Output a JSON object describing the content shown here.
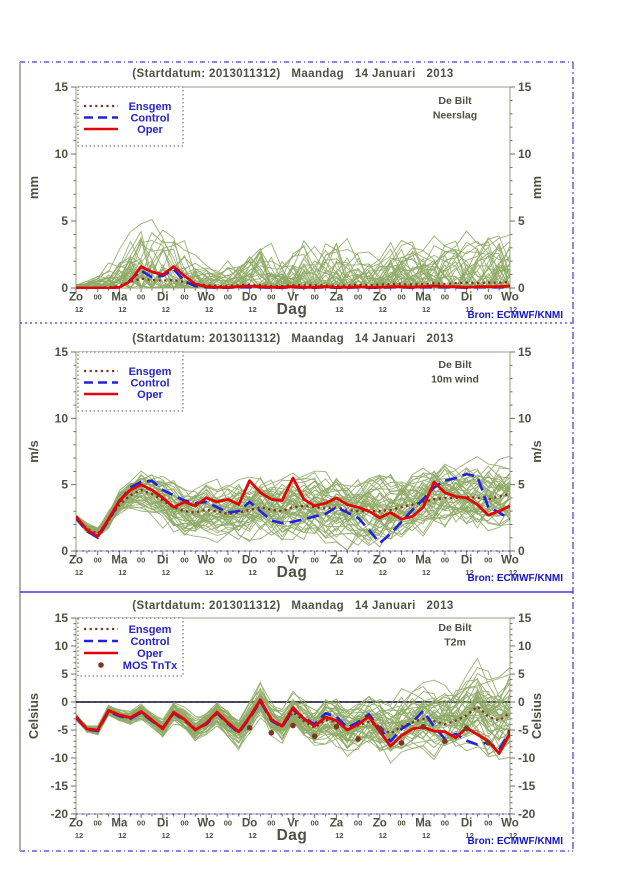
{
  "figure": {
    "source_label": "Bron: ECMWF/KNMI",
    "station": "De Bilt"
  },
  "colors": {
    "ensemble_green": "#8fab67",
    "oper_red": "#e30505",
    "control_blue": "#2222dd",
    "ensgem_brown": "#7e3522",
    "mos_brown": "#7e3522",
    "text_olive": "#4d5243",
    "tick_olive": "#6b7158",
    "box_gray": "#979d83",
    "legend_text_blue": "#2424cc",
    "source_blue": "#1515cc",
    "frame_blue": "#3b3be0",
    "frame_gray": "#adb3a2",
    "zero_dark": "#4b5040"
  },
  "chart_data": [
    {
      "type": "line",
      "title": "(Startdatum: 2013011312)   Maandag   14 Januari   2013",
      "station": "De Bilt",
      "variable": "Neerslag",
      "unit": "mm",
      "xlabel": "Dag",
      "source": "Bron: ECMWF/KNMI",
      "ylim": [
        0,
        15
      ],
      "ytick_major": 5,
      "ytick_minor": 1,
      "ytick_labels": [
        "0",
        "5",
        "10",
        "15"
      ],
      "x_day_labels": [
        "Zo",
        "Ma",
        "Di",
        "Wo",
        "Do",
        "Vr",
        "Za",
        "Zo",
        "Ma",
        "Di",
        "Wo"
      ],
      "x_midnight_label": "00",
      "x_noon_label": "12",
      "hours_per_step": 6,
      "zero_line": false,
      "legend": [
        {
          "key": "ensgem",
          "label": "Ensgem"
        },
        {
          "key": "control",
          "label": "Control"
        },
        {
          "key": "oper",
          "label": "Oper"
        }
      ],
      "series": {
        "ensgem": [
          0,
          0,
          0.02,
          0.05,
          0.15,
          0.45,
          0.7,
          0.6,
          0.55,
          0.6,
          0.45,
          0.3,
          0.2,
          0.15,
          0.15,
          0.2,
          0.25,
          0.2,
          0.15,
          0.15,
          0.2,
          0.25,
          0.2,
          0.2,
          0.15,
          0.2,
          0.25,
          0.2,
          0.25,
          0.3,
          0.3,
          0.25,
          0.3,
          0.35,
          0.3,
          0.35,
          0.4,
          0.35,
          0.4,
          0.4,
          0.45
        ],
        "control": [
          0,
          0,
          0,
          0,
          0.05,
          0.6,
          1.3,
          0.8,
          0.9,
          1.4,
          0.5,
          0.15,
          0.05,
          0.02,
          0.02,
          0.05,
          0.05,
          0.05,
          0.02,
          0.02,
          0.05,
          0.02,
          0.02,
          0.05,
          0.02,
          0.02,
          0.05,
          0.02,
          0.02,
          0.05,
          0.05,
          0.02,
          0.05,
          0.05,
          0.05,
          0.05,
          0.02,
          0.05,
          0.05,
          0.05,
          0.05
        ],
        "oper": [
          0,
          0,
          0,
          0,
          0.05,
          0.5,
          1.6,
          1.2,
          1.0,
          1.6,
          0.9,
          0.3,
          0.1,
          0.05,
          0.05,
          0.1,
          0.15,
          0.1,
          0.05,
          0.05,
          0.1,
          0.05,
          0.05,
          0.1,
          0.05,
          0.05,
          0.1,
          0.05,
          0.05,
          0.1,
          0.1,
          0.05,
          0.1,
          0.15,
          0.1,
          0.1,
          0.05,
          0.1,
          0.1,
          0.1,
          0.15
        ]
      },
      "ensemble": {
        "count": 50,
        "seed": 9,
        "mode": "precip",
        "spread": [
          0.3,
          0.5,
          0.8,
          1.5,
          2.5,
          3.5,
          4.2,
          4.0,
          3.8,
          3.5,
          3.0,
          2.2,
          1.6,
          1.4,
          1.8,
          2.2,
          2.6,
          3.0,
          2.8,
          2.4,
          3.2,
          3.6,
          3.2,
          3.4,
          3.8,
          3.2,
          2.8,
          2.4,
          2.2,
          2.6,
          3.0,
          2.8,
          2.6,
          3.0,
          3.4,
          3.2,
          3.6,
          4.0,
          3.8,
          3.6,
          3.8
        ]
      }
    },
    {
      "type": "line",
      "title": "(Startdatum: 2013011312)   Maandag   14 Januari   2013",
      "station": "De Bilt",
      "variable": "10m wind",
      "unit": "m/s",
      "xlabel": "Dag",
      "source": "Bron: ECMWF/KNMI",
      "ylim": [
        0,
        15
      ],
      "ytick_major": 5,
      "ytick_minor": 1,
      "ytick_labels": [
        "0",
        "5",
        "10",
        "15"
      ],
      "x_day_labels": [
        "Zo",
        "Ma",
        "Di",
        "Wo",
        "Do",
        "Vr",
        "Za",
        "Zo",
        "Ma",
        "Di",
        "Wo"
      ],
      "x_midnight_label": "00",
      "x_noon_label": "12",
      "hours_per_step": 6,
      "zero_line": false,
      "legend": [
        {
          "key": "ensgem",
          "label": "Ensgem"
        },
        {
          "key": "control",
          "label": "Control"
        },
        {
          "key": "oper",
          "label": "Oper"
        }
      ],
      "series": {
        "ensgem": [
          2.5,
          1.7,
          1.3,
          2.3,
          3.5,
          4.2,
          4.6,
          4.3,
          3.8,
          3.3,
          3.0,
          2.9,
          3.1,
          3.0,
          2.8,
          2.9,
          3.1,
          3.3,
          3.1,
          3.0,
          3.3,
          3.4,
          3.3,
          3.2,
          3.3,
          3.1,
          3.0,
          3.0,
          3.0,
          3.1,
          3.3,
          3.5,
          3.7,
          3.9,
          4.0,
          4.0,
          4.1,
          4.0,
          3.9,
          4.1,
          4.3
        ],
        "control": [
          2.5,
          1.5,
          1.0,
          2.3,
          3.7,
          4.8,
          5.2,
          5.3,
          4.6,
          4.2,
          3.8,
          3.6,
          3.7,
          3.3,
          2.9,
          3.0,
          3.7,
          3.0,
          2.3,
          2.1,
          2.2,
          2.4,
          2.6,
          2.8,
          3.3,
          2.9,
          2.5,
          1.6,
          0.6,
          1.3,
          2.2,
          3.1,
          3.9,
          4.8,
          5.3,
          5.5,
          5.8,
          5.6,
          3.3,
          2.9,
          2.4
        ],
        "oper": [
          2.6,
          1.6,
          1.1,
          2.4,
          3.8,
          4.6,
          5.0,
          4.6,
          4.0,
          3.3,
          3.7,
          3.4,
          4.0,
          3.7,
          3.9,
          3.5,
          5.3,
          4.4,
          3.9,
          3.8,
          5.5,
          3.9,
          3.4,
          3.6,
          4.0,
          3.5,
          3.3,
          3.0,
          2.5,
          2.9,
          2.4,
          2.6,
          3.3,
          5.2,
          4.4,
          4.1,
          4.0,
          3.5,
          2.7,
          3.0,
          3.4
        ]
      },
      "ensemble": {
        "count": 50,
        "seed": 17,
        "mode": "spread",
        "spread": [
          0.25,
          0.35,
          0.45,
          0.7,
          1.0,
          1.3,
          1.5,
          1.6,
          1.7,
          1.8,
          1.8,
          1.9,
          1.9,
          2.0,
          2.0,
          2.1,
          2.1,
          2.2,
          2.2,
          2.2,
          2.3,
          2.3,
          2.3,
          2.4,
          2.4,
          2.4,
          2.4,
          2.5,
          2.5,
          2.5,
          2.5,
          2.5,
          2.5,
          2.5,
          2.5,
          2.5,
          2.5,
          2.5,
          2.5,
          2.5,
          2.5
        ]
      }
    },
    {
      "type": "line",
      "title": "(Startdatum: 2013011312)   Maandag   14 Januari   2013",
      "station": "De Bilt",
      "variable": "T2m",
      "unit": "Celsius",
      "xlabel": "Dag",
      "source": "Bron: ECMWF/KNMI",
      "ylim": [
        -20,
        15
      ],
      "ytick_major": 5,
      "ytick_minor": 1,
      "ytick_labels": [
        "-20",
        "-15",
        "-10",
        "-5",
        "0",
        "5",
        "10",
        "15"
      ],
      "x_day_labels": [
        "Zo",
        "Ma",
        "Di",
        "Wo",
        "Do",
        "Vr",
        "Za",
        "Zo",
        "Ma",
        "Di",
        "Wo"
      ],
      "x_midnight_label": "00",
      "x_noon_label": "12",
      "hours_per_step": 6,
      "zero_line": true,
      "legend": [
        {
          "key": "ensgem",
          "label": "Ensgem"
        },
        {
          "key": "control",
          "label": "Control"
        },
        {
          "key": "oper",
          "label": "Oper"
        },
        {
          "key": "mos",
          "label": "MOS TnTx"
        }
      ],
      "series": {
        "ensgem": [
          -2.7,
          -4.8,
          -5.1,
          -1.6,
          -2.4,
          -2.9,
          -1.8,
          -3.3,
          -4.7,
          -1.9,
          -3.2,
          -4.9,
          -3.9,
          -1.9,
          -3.8,
          -5.4,
          -2.8,
          0.2,
          -3.2,
          -4.4,
          -1.8,
          -3.4,
          -4.6,
          -3.2,
          -3.6,
          -4.9,
          -4.2,
          -3.5,
          -4.6,
          -5.6,
          -4.4,
          -3.6,
          -3.0,
          -3.4,
          -4.0,
          -3.3,
          -2.4,
          -0.8,
          -2.6,
          -3.3,
          -1.9
        ],
        "control": [
          -2.8,
          -4.9,
          -5.2,
          -1.7,
          -2.5,
          -3.0,
          -1.9,
          -3.4,
          -4.6,
          -2.0,
          -3.3,
          -4.8,
          -4.0,
          -2.0,
          -3.9,
          -5.5,
          -2.9,
          0.1,
          -3.3,
          -4.5,
          -1.4,
          -2.8,
          -4.0,
          -2.0,
          -2.6,
          -4.6,
          -3.6,
          -2.2,
          -4.8,
          -7.0,
          -4.8,
          -3.6,
          -1.6,
          -4.4,
          -6.6,
          -5.7,
          -6.9,
          -7.6,
          -7.2,
          -8.5,
          -5.3
        ],
        "oper": [
          -2.6,
          -4.8,
          -5.0,
          -1.5,
          -2.3,
          -2.8,
          -1.7,
          -3.2,
          -4.8,
          -1.8,
          -3.1,
          -5.0,
          -3.8,
          -1.8,
          -3.7,
          -5.3,
          -2.7,
          0.4,
          -3.1,
          -4.3,
          -1.0,
          -3.0,
          -4.3,
          -2.7,
          -3.3,
          -5.0,
          -4.0,
          -2.6,
          -5.3,
          -7.9,
          -6.0,
          -4.8,
          -4.5,
          -5.2,
          -5.3,
          -6.4,
          -4.6,
          -5.8,
          -7.0,
          -9.2,
          -5.6
        ]
      },
      "mos": {
        "label": "MOS TnTx",
        "t": [
          16,
          18,
          20,
          22,
          24,
          26,
          28,
          30,
          32,
          34,
          36,
          38,
          40
        ],
        "values": [
          -4.6,
          -5.5,
          -4.2,
          -6.1,
          -4.4,
          -6.6,
          -4.7,
          -7.3,
          -4.4,
          -7.0,
          -4.7,
          -7.3,
          -5.4
        ]
      },
      "ensemble": {
        "count": 50,
        "seed": 23,
        "mode": "spread",
        "spread": [
          0.6,
          0.7,
          0.8,
          0.9,
          1.0,
          1.1,
          1.2,
          1.3,
          1.5,
          1.7,
          1.8,
          2.0,
          2.1,
          2.2,
          2.4,
          2.5,
          2.7,
          2.8,
          3.0,
          3.2,
          3.4,
          3.6,
          3.8,
          4.0,
          4.2,
          4.4,
          4.6,
          4.8,
          5.0,
          5.2,
          5.4,
          5.5,
          5.7,
          5.8,
          6.0,
          6.1,
          6.2,
          6.3,
          6.4,
          6.5,
          6.6
        ]
      }
    }
  ]
}
